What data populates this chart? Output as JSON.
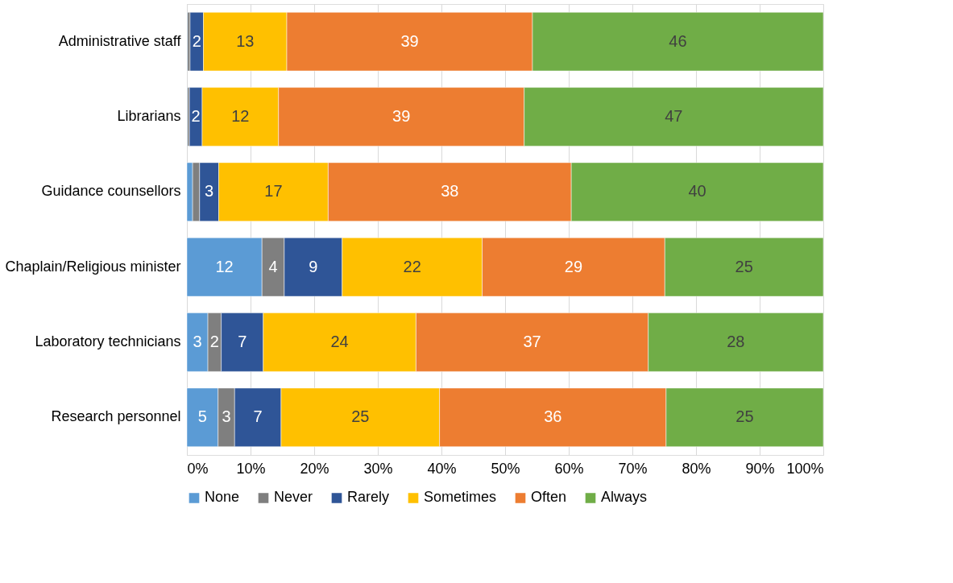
{
  "chart_data": {
    "type": "bar",
    "orientation": "horizontal",
    "stacked": true,
    "categories": [
      "Administrative staff",
      "Librarians",
      "Guidance counsellors",
      "Chaplain/Religious minister",
      "Laboratory technicians",
      "Research personnel"
    ],
    "series": [
      {
        "name": "None",
        "color": "#5b9bd5",
        "values": [
          0.1,
          0.1,
          0.9,
          11.8,
          3.3,
          4.9
        ],
        "value_labels": [
          null,
          null,
          null,
          "12",
          "3",
          "5"
        ]
      },
      {
        "name": "Never",
        "color": "#7f7f7f",
        "values": [
          0.4,
          0.3,
          1.1,
          3.5,
          2.1,
          2.6
        ],
        "value_labels": [
          null,
          null,
          null,
          "4",
          "2",
          "3"
        ]
      },
      {
        "name": "Rarely",
        "color": "#2f5597",
        "values": [
          2.1,
          2.0,
          3.0,
          9.1,
          6.6,
          7.3
        ],
        "value_labels": [
          "2",
          "2",
          "3",
          "9",
          "7",
          "7"
        ]
      },
      {
        "name": "Sometimes",
        "color": "#ffc000",
        "values": [
          13.1,
          12.0,
          17.2,
          22.0,
          24.0,
          24.9
        ],
        "value_labels": [
          "13",
          "12",
          "17",
          "22",
          "24",
          "25"
        ]
      },
      {
        "name": "Often",
        "color": "#ed7d31",
        "values": [
          38.6,
          38.6,
          38.2,
          28.7,
          36.5,
          35.6
        ],
        "value_labels": [
          "39",
          "39",
          "38",
          "29",
          "37",
          "36"
        ]
      },
      {
        "name": "Always",
        "color": "#70ad47",
        "values": [
          45.7,
          47.0,
          39.6,
          24.9,
          27.5,
          24.7
        ],
        "value_labels": [
          "46",
          "47",
          "40",
          "25",
          "28",
          "25"
        ]
      }
    ],
    "xlim": [
      0,
      100
    ],
    "xticks": [
      {
        "value": 0,
        "label": "0%"
      },
      {
        "value": 10,
        "label": "10%"
      },
      {
        "value": 20,
        "label": "20%"
      },
      {
        "value": 30,
        "label": "30%"
      },
      {
        "value": 40,
        "label": "40%"
      },
      {
        "value": 50,
        "label": "50%"
      },
      {
        "value": 60,
        "label": "60%"
      },
      {
        "value": 70,
        "label": "70%"
      },
      {
        "value": 80,
        "label": "80%"
      },
      {
        "value": 90,
        "label": "90%"
      },
      {
        "value": 100,
        "label": "100%"
      }
    ],
    "grid": "x",
    "legend": "bottom"
  }
}
